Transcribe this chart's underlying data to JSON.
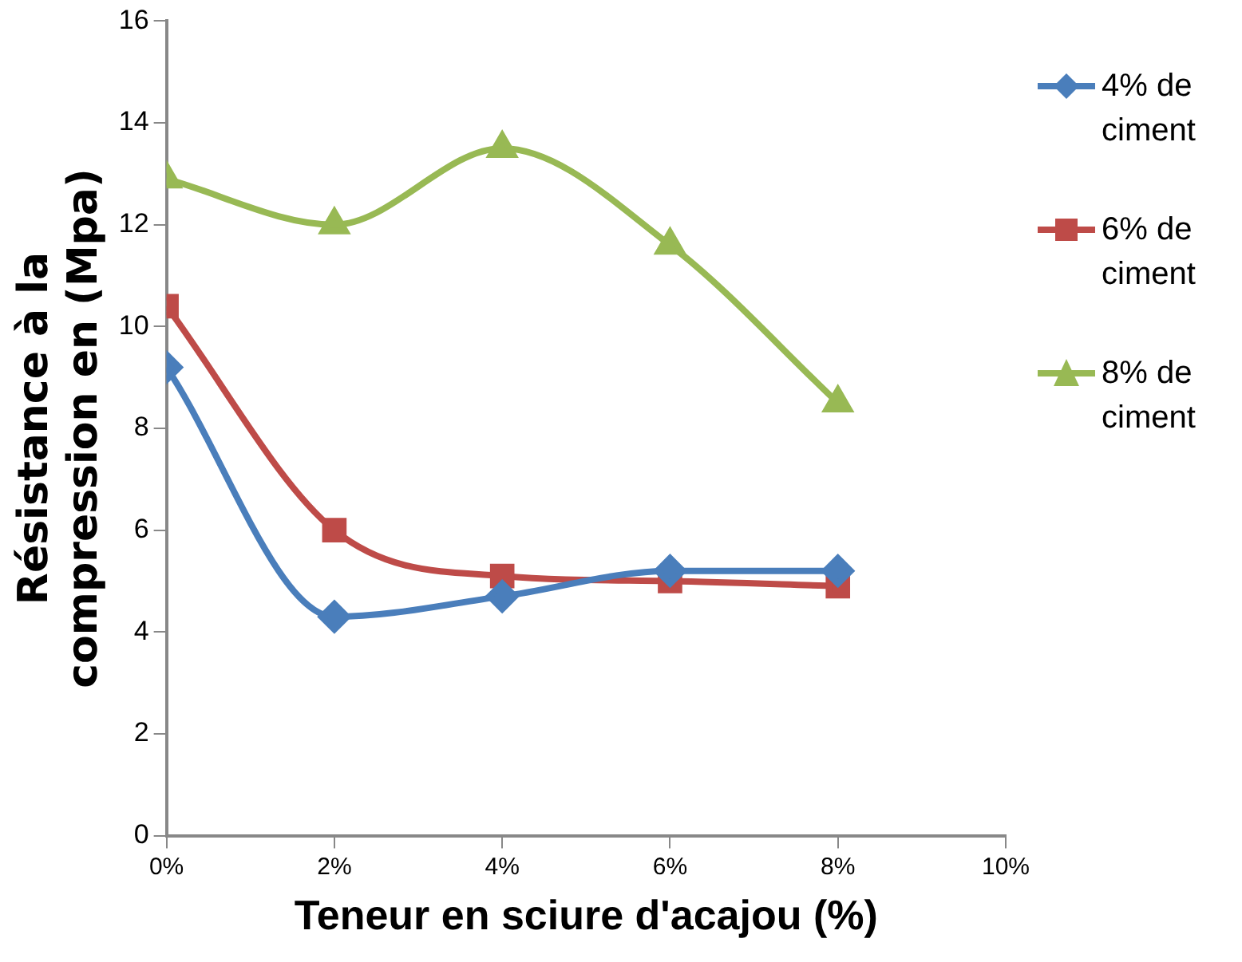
{
  "chart_data": {
    "type": "line",
    "xlabel": "Teneur en sciure d'acajou (%)",
    "ylabel": "Résistance à la compression en (Mpa)",
    "x": [
      0,
      2,
      4,
      6,
      8
    ],
    "xlim": [
      0,
      10
    ],
    "xticks": [
      {
        "value": 0,
        "label": "0%"
      },
      {
        "value": 2,
        "label": "2%"
      },
      {
        "value": 4,
        "label": "4%"
      },
      {
        "value": 6,
        "label": "6%"
      },
      {
        "value": 8,
        "label": "8%"
      },
      {
        "value": 10,
        "label": "10%"
      }
    ],
    "ylim": [
      0,
      16
    ],
    "yticks": [
      0,
      2,
      4,
      6,
      8,
      10,
      12,
      14,
      16
    ],
    "grid": false,
    "legend": "right",
    "series": [
      {
        "name": "4% de ciment",
        "color": "#4a7ebb",
        "marker": "diamond",
        "values": [
          9.2,
          4.3,
          4.7,
          5.2,
          5.2
        ]
      },
      {
        "name": "6% de ciment",
        "color": "#be4b48",
        "marker": "square",
        "values": [
          10.4,
          6.0,
          5.1,
          5.0,
          4.9
        ]
      },
      {
        "name": "8% de ciment",
        "color": "#98b954",
        "marker": "triangle",
        "values": [
          12.9,
          12.0,
          13.5,
          11.6,
          8.5
        ]
      }
    ]
  }
}
